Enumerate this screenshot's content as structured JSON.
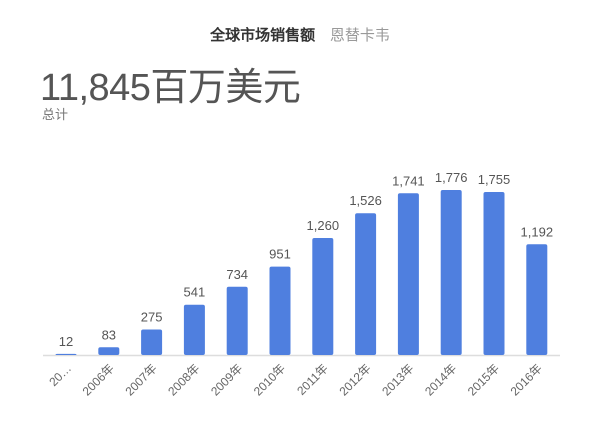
{
  "header": {
    "title": "全球市场销售额",
    "subtitle": "恩替卡韦"
  },
  "summary": {
    "total": "11,845百万美元",
    "label": "总计"
  },
  "chart_data": {
    "type": "bar",
    "categories": [
      "20…",
      "2006年",
      "2007年",
      "2008年",
      "2009年",
      "2010年",
      "2011年",
      "2012年",
      "2013年",
      "2014年",
      "2015年",
      "2016年"
    ],
    "values": [
      12,
      83,
      275,
      541,
      734,
      951,
      1260,
      1526,
      1741,
      1776,
      1755,
      1192
    ],
    "data_labels": [
      "12",
      "83",
      "275",
      "541",
      "734",
      "951",
      "1,260",
      "1,526",
      "1,741",
      "1,776",
      "1,755",
      "1,192"
    ],
    "title": "全球市场销售额",
    "xlabel": "",
    "ylabel": "",
    "ylim": [
      0,
      1800
    ],
    "grid": false,
    "bar_color": "#4f7fdf"
  }
}
